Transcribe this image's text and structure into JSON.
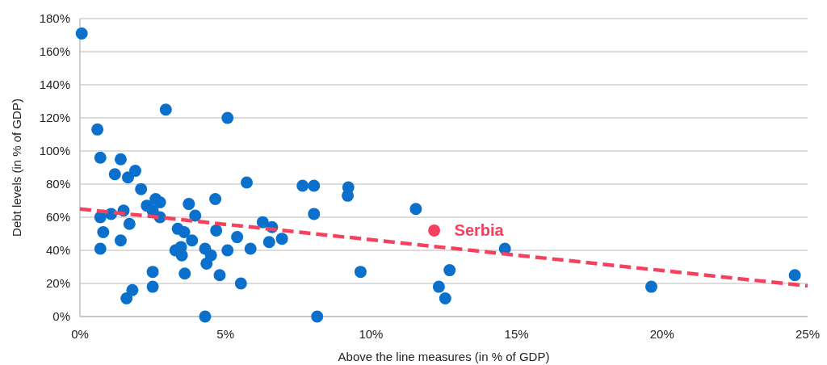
{
  "chart_data": {
    "type": "scatter",
    "xlabel": "Above the line measures (in % of GDP)",
    "ylabel": "Debt levels (in % of GDP)",
    "xlim": [
      0,
      25
    ],
    "xticks": [
      {
        "value": 0,
        "label": "0%"
      },
      {
        "value": 5,
        "label": "5%"
      },
      {
        "value": 10,
        "label": "10%"
      },
      {
        "value": 15,
        "label": "15%"
      },
      {
        "value": 20,
        "label": "20%"
      },
      {
        "value": 25,
        "label": "25%"
      }
    ],
    "ylim": [
      0,
      180
    ],
    "yticks": [
      {
        "value": 0,
        "label": "0%"
      },
      {
        "value": 20,
        "label": "20%"
      },
      {
        "value": 40,
        "label": "40%"
      },
      {
        "value": 60,
        "label": "60%"
      },
      {
        "value": 80,
        "label": "80%"
      },
      {
        "value": 100,
        "label": "100%"
      },
      {
        "value": 120,
        "label": "120%"
      },
      {
        "value": 140,
        "label": "140%"
      },
      {
        "value": 160,
        "label": "160%"
      },
      {
        "value": 180,
        "label": "180%"
      }
    ],
    "grid": "y",
    "legend": false,
    "marker": "circle",
    "series": [
      {
        "color": "#0a70cc",
        "x": [
          0.06,
          0.6,
          0.7,
          0.7,
          0.8,
          0.7,
          1.07,
          1.2,
          1.4,
          1.4,
          1.5,
          1.65,
          1.7,
          1.6,
          1.8,
          1.9,
          2.1,
          2.3,
          2.5,
          2.6,
          2.75,
          2.75,
          2.5,
          2.5,
          2.95,
          3.36,
          3.28,
          3.47,
          3.5,
          3.58,
          3.6,
          3.74,
          3.85,
          3.96,
          4.3,
          4.35,
          4.5,
          4.3,
          4.65,
          4.68,
          4.8,
          5.07,
          5.07,
          5.4,
          5.53,
          5.73,
          5.86,
          6.28,
          6.5,
          6.6,
          6.94,
          7.65,
          8.04,
          8.04,
          8.15,
          9.22,
          9.2,
          9.64,
          11.54,
          12.33,
          12.55,
          12.7,
          14.6,
          19.63,
          24.56
        ],
        "values": [
          171,
          113,
          96,
          60,
          51,
          41,
          62,
          86,
          95,
          46,
          64,
          84,
          56,
          11,
          16,
          88,
          77,
          67,
          64,
          71,
          69,
          60,
          27,
          18,
          125,
          53,
          40,
          42,
          37,
          51,
          26,
          68,
          46,
          61,
          41,
          32,
          37,
          0,
          71,
          52,
          25,
          120,
          40,
          48,
          20,
          81,
          41,
          57,
          45,
          54,
          47,
          79,
          79,
          62,
          0,
          78,
          73,
          27,
          65,
          18,
          11,
          28,
          41,
          18,
          25
        ]
      },
      {
        "name": "Serbia",
        "color": "#f5405e",
        "x": [
          12.17
        ],
        "values": [
          52
        ]
      },
      {
        "type": "line",
        "color": "#f5405e",
        "line_style": "dashed",
        "marker": "none",
        "x": [
          0,
          25
        ],
        "values": [
          65,
          18.5
        ]
      }
    ]
  }
}
